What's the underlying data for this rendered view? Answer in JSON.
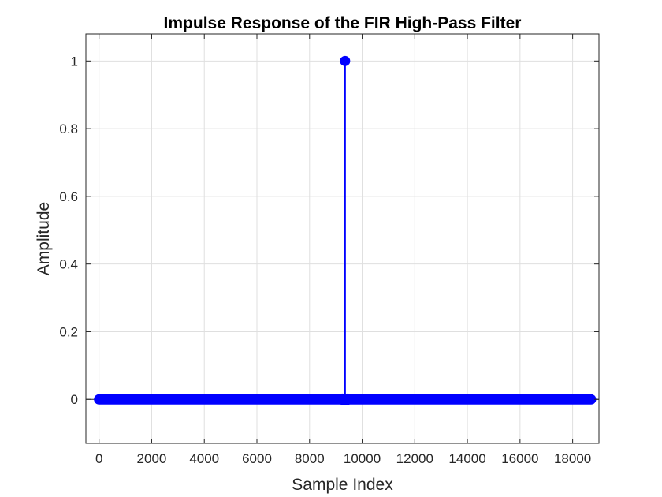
{
  "chart_data": {
    "type": "stem",
    "title": "Impulse Response of the FIR High-Pass Filter",
    "xlabel": "Sample Index",
    "ylabel": "Amplitude",
    "xlim": [
      -500,
      19000
    ],
    "ylim": [
      -0.13,
      1.08
    ],
    "xticks": [
      0,
      2000,
      4000,
      6000,
      8000,
      10000,
      12000,
      14000,
      16000,
      18000
    ],
    "xtick_labels": [
      "0",
      "2000",
      "4000",
      "6000",
      "8000",
      "10000",
      "12000",
      "14000",
      "16000",
      "18000"
    ],
    "yticks": [
      0,
      0.2,
      0.4,
      0.6,
      0.8,
      1
    ],
    "ytick_labels": [
      "0",
      "0.2",
      "0.4",
      "0.6",
      "0.8",
      "1"
    ],
    "grid": true,
    "color": "#0000ff",
    "n_samples": 18700,
    "peak_index": 9350,
    "peak_value": 1,
    "baseline_value": 0,
    "small_values": [
      {
        "index": 9250,
        "value": 0.002
      },
      {
        "index": 9300,
        "value": -0.003
      },
      {
        "index": 9400,
        "value": -0.003
      },
      {
        "index": 9450,
        "value": 0.002
      }
    ]
  }
}
